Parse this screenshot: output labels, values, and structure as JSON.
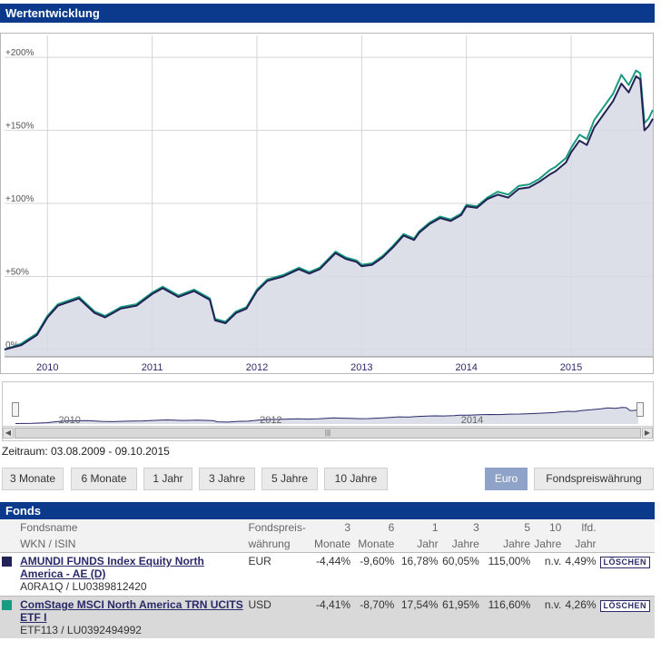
{
  "section_title": "Wertentwicklung",
  "zeitraum": "Zeitraum: 03.08.2009 - 09.10.2015",
  "period_buttons": [
    "3 Monate",
    "6 Monate",
    "1 Jahr",
    "3 Jahre",
    "5 Jahre",
    "10 Jahre"
  ],
  "currency_buttons": {
    "euro": "Euro",
    "fund": "Fondspreiswährung",
    "active": "Euro"
  },
  "navigator_labels": [
    "2010",
    "2012",
    "2014"
  ],
  "fonds_title": "Fonds",
  "table_headers": {
    "name": [
      "Fondsname",
      "WKN / ISIN"
    ],
    "currency": [
      "Fondspreis-",
      "währung"
    ],
    "m3": [
      "3",
      "Monate"
    ],
    "m6": [
      "6",
      "Monate"
    ],
    "y1": [
      "1",
      "Jahr"
    ],
    "y3": [
      "3",
      "Jahre"
    ],
    "y5": [
      "5",
      "Jahre"
    ],
    "y10": [
      "10",
      "Jahre"
    ],
    "ytd": [
      "lfd.",
      "Jahr"
    ]
  },
  "funds": [
    {
      "name": "AMUNDI FUNDS Index Equity North America - AE (D)",
      "ids": "A0RA1Q / LU0389812420",
      "currency": "EUR",
      "m3": "-4,44%",
      "m6": "-9,60%",
      "y1": "16,78%",
      "y3": "60,05%",
      "y5": "115,00%",
      "y10": "n.v.",
      "ytd": "4,49%",
      "delete": "LÖSCHEN",
      "color": "#222255"
    },
    {
      "name": "ComStage MSCI North America TRN UCITS ETF I",
      "ids": "ETF113 / LU0392494992",
      "currency": "USD",
      "m3": "-4,41%",
      "m6": "-8,70%",
      "y1": "17,54%",
      "y3": "61,95%",
      "y5": "116,60%",
      "y10": "n.v.",
      "ytd": "4,26%",
      "delete": "LÖSCHEN",
      "color": "#1a9a80"
    }
  ],
  "chart_data": {
    "type": "line",
    "x_tick_labels": [
      "2010",
      "2011",
      "2012",
      "2013",
      "2014",
      "2015"
    ],
    "y_tick_labels": [
      "0%",
      "+50%",
      "+100%",
      "+150%",
      "+200%"
    ],
    "ylim": [
      -5,
      215
    ],
    "xlim": [
      2009.59,
      2015.78
    ],
    "grid": true,
    "series": [
      {
        "name": "AMUNDI FUNDS Index Equity North America - AE (D)",
        "color": "#222255",
        "x": [
          2009.59,
          2009.75,
          2009.9,
          2010.0,
          2010.1,
          2010.3,
          2010.45,
          2010.55,
          2010.7,
          2010.85,
          2011.0,
          2011.1,
          2011.25,
          2011.4,
          2011.55,
          2011.6,
          2011.7,
          2011.8,
          2011.9,
          2012.0,
          2012.1,
          2012.25,
          2012.4,
          2012.5,
          2012.6,
          2012.75,
          2012.85,
          2012.95,
          2013.0,
          2013.1,
          2013.2,
          2013.3,
          2013.4,
          2013.5,
          2013.55,
          2013.65,
          2013.75,
          2013.85,
          2013.95,
          2014.0,
          2014.1,
          2014.2,
          2014.3,
          2014.4,
          2014.5,
          2014.6,
          2014.7,
          2014.8,
          2014.85,
          2014.95,
          2015.0,
          2015.08,
          2015.15,
          2015.22,
          2015.3,
          2015.4,
          2015.48,
          2015.55,
          2015.62,
          2015.66,
          2015.7,
          2015.74,
          2015.78
        ],
        "values": [
          0,
          3,
          10,
          22,
          30,
          35,
          25,
          22,
          28,
          30,
          38,
          42,
          36,
          40,
          34,
          20,
          18,
          25,
          28,
          40,
          47,
          50,
          55,
          52,
          55,
          66,
          62,
          60,
          57,
          58,
          63,
          70,
          78,
          75,
          80,
          86,
          90,
          88,
          92,
          98,
          97,
          103,
          106,
          104,
          110,
          111,
          115,
          120,
          122,
          128,
          135,
          143,
          140,
          152,
          160,
          170,
          182,
          176,
          187,
          185,
          150,
          153,
          158
        ]
      },
      {
        "name": "ComStage MSCI North America TRN UCITS ETF I",
        "color": "#1a9a80",
        "x": [
          2009.59,
          2009.75,
          2009.9,
          2010.0,
          2010.1,
          2010.3,
          2010.45,
          2010.55,
          2010.7,
          2010.85,
          2011.0,
          2011.1,
          2011.25,
          2011.4,
          2011.55,
          2011.6,
          2011.7,
          2011.8,
          2011.9,
          2012.0,
          2012.1,
          2012.25,
          2012.4,
          2012.5,
          2012.6,
          2012.75,
          2012.85,
          2012.95,
          2013.0,
          2013.1,
          2013.2,
          2013.3,
          2013.4,
          2013.5,
          2013.55,
          2013.65,
          2013.75,
          2013.85,
          2013.95,
          2014.0,
          2014.1,
          2014.2,
          2014.3,
          2014.4,
          2014.5,
          2014.6,
          2014.7,
          2014.8,
          2014.85,
          2014.95,
          2015.0,
          2015.08,
          2015.15,
          2015.22,
          2015.3,
          2015.4,
          2015.48,
          2015.55,
          2015.62,
          2015.66,
          2015.7,
          2015.74,
          2015.78
        ],
        "values": [
          0,
          4,
          11,
          23,
          31,
          36,
          26,
          23,
          29,
          31,
          39,
          43,
          37,
          41,
          35,
          21,
          19,
          26,
          29,
          41,
          48,
          51,
          56,
          53,
          56,
          67,
          63,
          61,
          58,
          59,
          64,
          71,
          79,
          76,
          81,
          87,
          91,
          89,
          93,
          99,
          98,
          104,
          108,
          106,
          112,
          113,
          117,
          123,
          125,
          131,
          138,
          147,
          144,
          157,
          165,
          175,
          188,
          181,
          191,
          189,
          155,
          158,
          164
        ]
      }
    ]
  }
}
